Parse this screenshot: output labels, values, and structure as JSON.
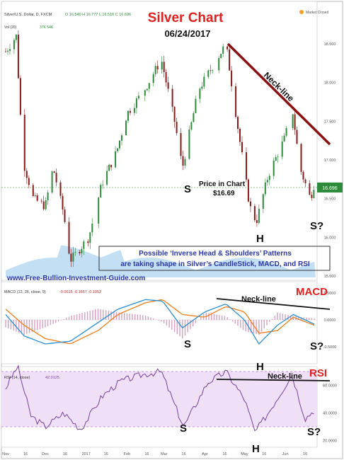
{
  "header": {
    "symbol_line": "Silver/U.S. Dollar, D, FXCM",
    "ohlc": "O 16.540  H 16.777  L 16.510  C 16.696",
    "vol_label": "Vol (20)",
    "vol_values": "37K  54K",
    "market_status": "Market Closed"
  },
  "title": {
    "main": "Silver Chart",
    "date": "06/24/2017"
  },
  "colors": {
    "title_red": "#e0211f",
    "up_candle": "#2e8b3c",
    "down_candle": "#8b1a1a",
    "neckline": "#8b1010",
    "macd_line": "#2a8fd6",
    "signal_line": "#f07d1a",
    "rsi_line": "#7b3f9e",
    "rsi_band": "#e8d5f5",
    "volume_area": "#8fc4ea",
    "note_text": "#2a36a8",
    "last_price_bg": "#2e8b3c"
  },
  "annotations": {
    "price_neckline": "Neck-line",
    "price_in_chart_label": "Price in Chart",
    "price_in_chart_value": "$16.69",
    "s_left": "S",
    "head": "H",
    "s_right": "S?",
    "note_line1": "Possible ‘Inverse Head & Shoulders’ Patterns",
    "note_line2": "are taking shape in Silver’s CandleStick, MACD, and RSI",
    "website": "www.Free-Bullion-Investment-Guide.com",
    "macd_title": "MACD",
    "macd_neckline": "Neck-line",
    "macd_s_left": "S",
    "macd_head": "H",
    "macd_s_right": "S?",
    "rsi_title": "RSI",
    "rsi_neckline": "Neck-line",
    "rsi_s_left": "S",
    "rsi_head": "H",
    "rsi_s_right": "S?"
  },
  "macd_header": {
    "label": "MACD (12, 26, close, 9)",
    "values": "-0.0615  -0.1667  -0.1052"
  },
  "rsi_header": {
    "label": "RSI (14, close)",
    "value": "42.0125"
  },
  "chart_data": {
    "type": "line",
    "title": "Silver Chart",
    "subtitle": "06/24/2017",
    "x_axis_ticks": [
      "Nov",
      "16",
      "Dec",
      "16",
      "2017",
      "16",
      "Feb",
      "16",
      "Mar",
      "16",
      "Apr",
      "16",
      "May",
      "16",
      "Jun",
      "16"
    ],
    "price_axis": {
      "ticks": [
        "18.500",
        "18.000",
        "17.500",
        "17.000",
        "16.500",
        "16.000",
        "15.500"
      ],
      "ylim": [
        15.5,
        18.7
      ],
      "last_price": "16.696"
    },
    "price_close_approx": {
      "x": [
        "Nov 1",
        "Nov 9",
        "Nov 14",
        "Nov 22",
        "Dec 1",
        "Dec 7",
        "Dec 15",
        "Dec 20",
        "Jan 3",
        "Jan 13",
        "Jan 24",
        "Feb 1",
        "Feb 14",
        "Feb 27",
        "Mar 9",
        "Mar 15",
        "Mar 27",
        "Apr 3",
        "Apr 17",
        "Apr 27",
        "May 5",
        "May 10",
        "May 19",
        "Jun 1",
        "Jun 6",
        "Jun 12",
        "Jun 20",
        "Jun 23"
      ],
      "close": [
        18.4,
        18.6,
        17.0,
        16.5,
        16.4,
        16.9,
        16.3,
        15.7,
        16.0,
        16.7,
        17.1,
        17.6,
        17.9,
        18.3,
        17.5,
        16.9,
        17.9,
        18.1,
        18.5,
        17.3,
        16.4,
        16.2,
        16.8,
        17.3,
        17.7,
        16.9,
        16.5,
        16.7
      ]
    },
    "macd_axis": {
      "ticks": [
        "0.5000",
        "0.0000",
        "-0.5000"
      ]
    },
    "macd_approx": {
      "x": [
        "Nov 1",
        "Nov 15",
        "Dec 1",
        "Dec 20",
        "Jan 10",
        "Jan 25",
        "Feb 15",
        "Feb 28",
        "Mar 15",
        "Apr 1",
        "Apr 17",
        "May 1",
        "May 12",
        "May 26",
        "Jun 7",
        "Jun 23"
      ],
      "macd": [
        0.1,
        -0.3,
        -0.45,
        -0.4,
        -0.05,
        0.2,
        0.38,
        0.35,
        -0.15,
        0.15,
        0.3,
        0.0,
        -0.45,
        -0.1,
        0.1,
        -0.08
      ],
      "signal": [
        0.2,
        -0.1,
        -0.35,
        -0.45,
        -0.2,
        0.1,
        0.32,
        0.38,
        0.1,
        0.05,
        0.25,
        0.15,
        -0.25,
        -0.2,
        0.05,
        -0.1
      ]
    },
    "rsi_axis": {
      "ticks": [
        "60.0000",
        "40.0000",
        "20.0000"
      ],
      "band": [
        30,
        70
      ]
    },
    "rsi_approx": {
      "x": [
        "Nov 1",
        "Nov 10",
        "Nov 20",
        "Dec 1",
        "Dec 15",
        "Dec 28",
        "Jan 13",
        "Jan 27",
        "Feb 14",
        "Feb 27",
        "Mar 9",
        "Mar 16",
        "Apr 3",
        "Apr 17",
        "May 1",
        "May 9",
        "May 19",
        "Jun 1",
        "Jun 6",
        "Jun 16",
        "Jun 23"
      ],
      "rsi": [
        58,
        74,
        38,
        30,
        40,
        28,
        52,
        63,
        68,
        70,
        46,
        30,
        62,
        70,
        50,
        26,
        40,
        60,
        68,
        36,
        42
      ]
    }
  }
}
